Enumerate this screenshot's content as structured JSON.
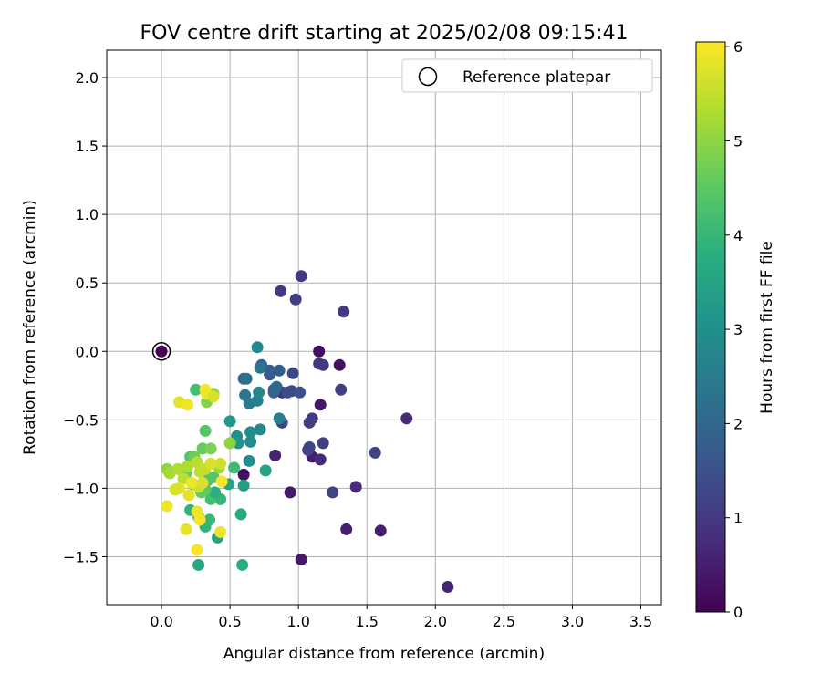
{
  "chart_data": {
    "type": "scatter",
    "title": "FOV centre drift starting at 2025/02/08 09:15:41",
    "xlabel": "Angular distance from reference (arcmin)",
    "ylabel": "Rotation from reference (arcmin)",
    "xlim": [
      -0.4,
      3.65
    ],
    "ylim": [
      -1.85,
      2.2
    ],
    "xticks": [
      "0.0",
      "0.5",
      "1.0",
      "1.5",
      "2.0",
      "2.5",
      "3.0",
      "3.5"
    ],
    "yticks": [
      "−1.5",
      "−1.0",
      "−0.5",
      "0.0",
      "0.5",
      "1.0",
      "1.5",
      "2.0"
    ],
    "grid": true,
    "legend": {
      "placement": "top-right",
      "label": "Reference platepar"
    },
    "reference_point": {
      "x": 0.0,
      "y": 0.0
    },
    "colorbar": {
      "label": "Hours from first FF file",
      "ticks": [
        "0",
        "1",
        "2",
        "3",
        "4",
        "5",
        "6"
      ],
      "range": [
        0,
        6.05
      ],
      "colormap": "viridis"
    },
    "series": [
      {
        "points": [
          {
            "x": 1.15,
            "y": 0.0,
            "h": 0.2
          },
          {
            "x": 1.3,
            "y": -0.1,
            "h": 0.3
          },
          {
            "x": 1.16,
            "y": -0.39,
            "h": 0.4
          },
          {
            "x": 1.1,
            "y": -0.77,
            "h": 0.5
          },
          {
            "x": 0.94,
            "y": -1.03,
            "h": 0.4
          },
          {
            "x": 1.35,
            "y": -1.3,
            "h": 0.5
          },
          {
            "x": 1.6,
            "y": -1.31,
            "h": 0.5
          },
          {
            "x": 2.09,
            "y": -1.72,
            "h": 0.6
          },
          {
            "x": 1.02,
            "y": -1.52,
            "h": 0.4
          },
          {
            "x": 1.79,
            "y": -0.49,
            "h": 0.7
          },
          {
            "x": 1.42,
            "y": -0.99,
            "h": 0.7
          },
          {
            "x": 0.6,
            "y": -0.9,
            "h": 0.3
          },
          {
            "x": 0.83,
            "y": -0.76,
            "h": 0.6
          },
          {
            "x": 1.16,
            "y": -0.79,
            "h": 0.7
          },
          {
            "x": 0.88,
            "y": -0.3,
            "h": 0.8
          },
          {
            "x": 1.02,
            "y": 0.55,
            "h": 1.0
          },
          {
            "x": 0.87,
            "y": 0.44,
            "h": 1.0
          },
          {
            "x": 0.98,
            "y": 0.38,
            "h": 1.1
          },
          {
            "x": 1.33,
            "y": 0.29,
            "h": 1.0
          },
          {
            "x": 1.15,
            "y": -0.09,
            "h": 1.0
          },
          {
            "x": 1.18,
            "y": -0.1,
            "h": 1.0
          },
          {
            "x": 0.96,
            "y": -0.16,
            "h": 1.3
          },
          {
            "x": 1.31,
            "y": -0.28,
            "h": 1.1
          },
          {
            "x": 1.1,
            "y": -0.49,
            "h": 1.0
          },
          {
            "x": 1.08,
            "y": -0.52,
            "h": 1.1
          },
          {
            "x": 0.88,
            "y": -0.52,
            "h": 1.2
          },
          {
            "x": 1.08,
            "y": -0.7,
            "h": 1.3
          },
          {
            "x": 1.07,
            "y": -0.72,
            "h": 1.2
          },
          {
            "x": 1.18,
            "y": -0.67,
            "h": 1.1
          },
          {
            "x": 1.56,
            "y": -0.74,
            "h": 1.2
          },
          {
            "x": 1.25,
            "y": -1.03,
            "h": 1.2
          },
          {
            "x": 0.95,
            "y": -0.29,
            "h": 1.3
          },
          {
            "x": 0.92,
            "y": -0.3,
            "h": 1.4
          },
          {
            "x": 1.01,
            "y": -0.3,
            "h": 1.5
          },
          {
            "x": 0.82,
            "y": -0.28,
            "h": 1.6
          },
          {
            "x": 0.79,
            "y": -0.17,
            "h": 1.7
          },
          {
            "x": 0.86,
            "y": -0.14,
            "h": 1.8
          },
          {
            "x": 0.79,
            "y": -0.14,
            "h": 1.8
          },
          {
            "x": 0.73,
            "y": -0.1,
            "h": 1.9
          },
          {
            "x": 0.82,
            "y": -0.3,
            "h": 1.9
          },
          {
            "x": 0.84,
            "y": -0.26,
            "h": 2.0
          },
          {
            "x": 0.6,
            "y": -0.2,
            "h": 2.1
          },
          {
            "x": 0.62,
            "y": -0.2,
            "h": 2.2
          },
          {
            "x": 0.72,
            "y": -0.12,
            "h": 2.3
          },
          {
            "x": 0.61,
            "y": -0.32,
            "h": 2.4
          },
          {
            "x": 0.64,
            "y": -0.38,
            "h": 2.5
          },
          {
            "x": 0.7,
            "y": -0.36,
            "h": 2.6
          },
          {
            "x": 0.71,
            "y": -0.3,
            "h": 2.7
          },
          {
            "x": 0.7,
            "y": 0.03,
            "h": 2.8
          },
          {
            "x": 0.86,
            "y": -0.49,
            "h": 2.6
          },
          {
            "x": 0.72,
            "y": -0.57,
            "h": 2.8
          },
          {
            "x": 0.65,
            "y": -0.59,
            "h": 2.9
          },
          {
            "x": 0.65,
            "y": -0.66,
            "h": 2.9
          },
          {
            "x": 0.55,
            "y": -0.62,
            "h": 3.0
          },
          {
            "x": 0.56,
            "y": -0.67,
            "h": 3.1
          },
          {
            "x": 0.64,
            "y": -0.8,
            "h": 3.0
          },
          {
            "x": 0.5,
            "y": -0.51,
            "h": 3.2
          },
          {
            "x": 0.76,
            "y": -0.87,
            "h": 3.5
          },
          {
            "x": 0.6,
            "y": -0.98,
            "h": 3.4
          },
          {
            "x": 0.49,
            "y": -0.97,
            "h": 3.5
          },
          {
            "x": 0.58,
            "y": -1.19,
            "h": 3.7
          },
          {
            "x": 0.41,
            "y": -1.36,
            "h": 3.5
          },
          {
            "x": 0.59,
            "y": -1.56,
            "h": 3.8
          },
          {
            "x": 0.27,
            "y": -1.56,
            "h": 3.6
          },
          {
            "x": 0.32,
            "y": -1.28,
            "h": 3.9
          },
          {
            "x": 0.35,
            "y": -1.23,
            "h": 4.0
          },
          {
            "x": 0.27,
            "y": -1.21,
            "h": 4.1
          },
          {
            "x": 0.21,
            "y": -1.16,
            "h": 3.9
          },
          {
            "x": 0.43,
            "y": -1.08,
            "h": 4.0
          },
          {
            "x": 0.36,
            "y": -1.08,
            "h": 4.2
          },
          {
            "x": 0.39,
            "y": -1.03,
            "h": 3.8
          },
          {
            "x": 0.53,
            "y": -0.85,
            "h": 4.1
          },
          {
            "x": 0.25,
            "y": -0.28,
            "h": 4.2
          },
          {
            "x": 0.32,
            "y": -0.58,
            "h": 4.4
          },
          {
            "x": 0.34,
            "y": -0.94,
            "h": 4.3
          },
          {
            "x": 0.38,
            "y": -0.92,
            "h": 4.4
          },
          {
            "x": 0.32,
            "y": -1.01,
            "h": 4.5
          },
          {
            "x": 0.29,
            "y": -1.03,
            "h": 4.6
          },
          {
            "x": 0.23,
            "y": -0.97,
            "h": 4.5
          },
          {
            "x": 0.18,
            "y": -0.89,
            "h": 4.6
          },
          {
            "x": 0.21,
            "y": -0.77,
            "h": 4.4
          },
          {
            "x": 0.24,
            "y": -0.77,
            "h": 4.7
          },
          {
            "x": 0.3,
            "y": -0.71,
            "h": 4.6
          },
          {
            "x": 0.36,
            "y": -0.71,
            "h": 4.8
          },
          {
            "x": 0.5,
            "y": -0.67,
            "h": 5.0
          },
          {
            "x": 0.33,
            "y": -0.37,
            "h": 4.9
          },
          {
            "x": 0.38,
            "y": -0.31,
            "h": 5.0
          },
          {
            "x": 0.42,
            "y": -0.85,
            "h": 5.1
          },
          {
            "x": 0.04,
            "y": -0.86,
            "h": 5.0
          },
          {
            "x": 0.06,
            "y": -0.89,
            "h": 5.2
          },
          {
            "x": 0.12,
            "y": -0.86,
            "h": 5.3
          },
          {
            "x": 0.16,
            "y": -0.93,
            "h": 5.4
          },
          {
            "x": 0.19,
            "y": -0.84,
            "h": 5.3
          },
          {
            "x": 0.26,
            "y": -0.81,
            "h": 5.4
          },
          {
            "x": 0.28,
            "y": -0.88,
            "h": 5.5
          },
          {
            "x": 0.32,
            "y": -0.86,
            "h": 5.5
          },
          {
            "x": 0.43,
            "y": -0.82,
            "h": 5.6
          },
          {
            "x": 0.36,
            "y": -0.82,
            "h": 5.7
          },
          {
            "x": 0.27,
            "y": -0.99,
            "h": 5.6
          },
          {
            "x": 0.3,
            "y": -0.96,
            "h": 5.7
          },
          {
            "x": 0.2,
            "y": -1.05,
            "h": 5.8
          },
          {
            "x": 0.13,
            "y": -1.0,
            "h": 5.8
          },
          {
            "x": 0.1,
            "y": -1.01,
            "h": 5.7
          },
          {
            "x": 0.04,
            "y": -1.13,
            "h": 5.9
          },
          {
            "x": 0.22,
            "y": -0.96,
            "h": 5.9
          },
          {
            "x": 0.44,
            "y": -0.95,
            "h": 6.0
          },
          {
            "x": 0.26,
            "y": -1.17,
            "h": 5.9
          },
          {
            "x": 0.28,
            "y": -1.23,
            "h": 6.0
          },
          {
            "x": 0.18,
            "y": -1.3,
            "h": 5.8
          },
          {
            "x": 0.43,
            "y": -1.32,
            "h": 5.9
          },
          {
            "x": 0.26,
            "y": -1.45,
            "h": 6.0
          },
          {
            "x": 0.13,
            "y": -0.37,
            "h": 5.8
          },
          {
            "x": 0.19,
            "y": -0.39,
            "h": 5.9
          },
          {
            "x": 0.32,
            "y": -0.28,
            "h": 6.0
          },
          {
            "x": 0.33,
            "y": -0.31,
            "h": 5.9
          },
          {
            "x": 0.38,
            "y": -0.33,
            "h": 5.7
          }
        ]
      }
    ]
  }
}
